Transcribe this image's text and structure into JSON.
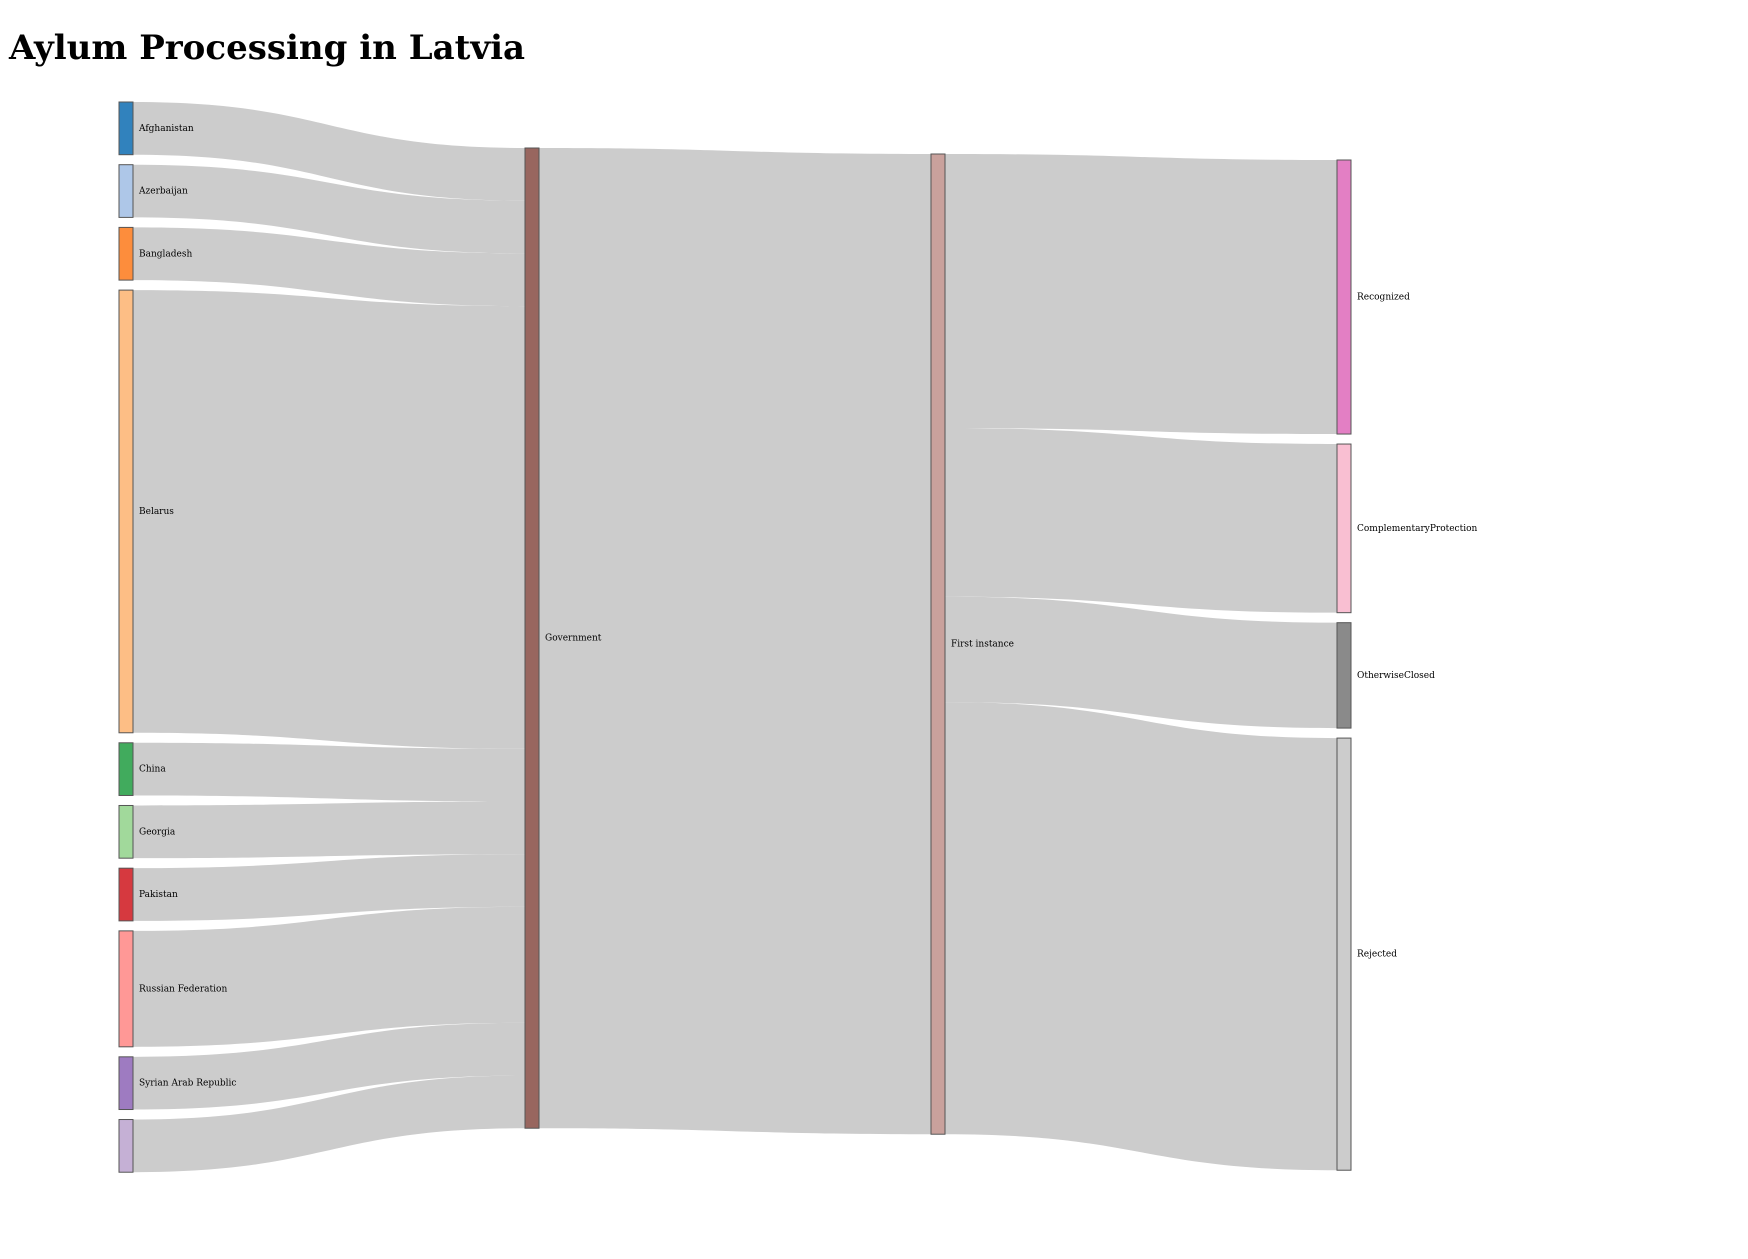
{
  "title": "Aylum Processing in Latvia",
  "chart_data": {
    "type": "sankey",
    "columns": [
      [
        "Afghanistan",
        "Azerbaijan",
        "Bangladesh",
        "Belarus",
        "China",
        "Georgia",
        "Pakistan",
        "Russian Federation",
        "Syrian Arab Republic",
        ""
      ],
      [
        "Government"
      ],
      [
        "First instance"
      ],
      [
        "Recognized",
        "ComplementaryProtection",
        "OtherwiseClosed",
        "Rejected"
      ]
    ],
    "nodes": [
      {
        "id": "afghanistan",
        "label": "Afghanistan",
        "color": "#3182bd"
      },
      {
        "id": "azerbaijan",
        "label": "Azerbaijan",
        "color": "#aec7e8"
      },
      {
        "id": "bangladesh",
        "label": "Bangladesh",
        "color": "#fd8d3c"
      },
      {
        "id": "belarus",
        "label": "Belarus",
        "color": "#fdbe85"
      },
      {
        "id": "china",
        "label": "China",
        "color": "#41ab5d"
      },
      {
        "id": "georgia",
        "label": "Georgia",
        "color": "#a1d99b"
      },
      {
        "id": "pakistan",
        "label": "Pakistan",
        "color": "#d6393f"
      },
      {
        "id": "russian-federation",
        "label": "Russian Federation",
        "color": "#ff9896"
      },
      {
        "id": "syrian-arab-republic",
        "label": "Syrian Arab Republic",
        "color": "#9e7bc1"
      },
      {
        "id": "other-origin",
        "label": "",
        "color": "#c5b0d5"
      },
      {
        "id": "government",
        "label": "Government",
        "color": "#98665f"
      },
      {
        "id": "first-instance",
        "label": "First instance",
        "color": "#c9a19c"
      },
      {
        "id": "recognized",
        "label": "Recognized",
        "color": "#e37fc4"
      },
      {
        "id": "complementary-protection",
        "label": "ComplementaryProtection",
        "color": "#f9bfd2"
      },
      {
        "id": "otherwise-closed",
        "label": "OtherwiseClosed",
        "color": "#8a8a8a"
      },
      {
        "id": "rejected",
        "label": "Rejected",
        "color": "#cccccc"
      }
    ],
    "links": [
      {
        "source": "afghanistan",
        "target": "government",
        "value": 5
      },
      {
        "source": "azerbaijan",
        "target": "government",
        "value": 5
      },
      {
        "source": "bangladesh",
        "target": "government",
        "value": 5
      },
      {
        "source": "belarus",
        "target": "government",
        "value": 42
      },
      {
        "source": "china",
        "target": "government",
        "value": 5
      },
      {
        "source": "georgia",
        "target": "government",
        "value": 5
      },
      {
        "source": "pakistan",
        "target": "government",
        "value": 5
      },
      {
        "source": "russian-federation",
        "target": "government",
        "value": 11
      },
      {
        "source": "syrian-arab-republic",
        "target": "government",
        "value": 5
      },
      {
        "source": "other-origin",
        "target": "government",
        "value": 5
      },
      {
        "source": "government",
        "target": "first-instance",
        "value": 93
      },
      {
        "source": "first-instance",
        "target": "recognized",
        "value": 26
      },
      {
        "source": "first-instance",
        "target": "complementary-protection",
        "value": 16
      },
      {
        "source": "first-instance",
        "target": "otherwise-closed",
        "value": 10
      },
      {
        "source": "first-instance",
        "target": "rejected",
        "value": 41
      }
    ],
    "link_color": "#cccccc",
    "node_border_color": "#555555"
  }
}
